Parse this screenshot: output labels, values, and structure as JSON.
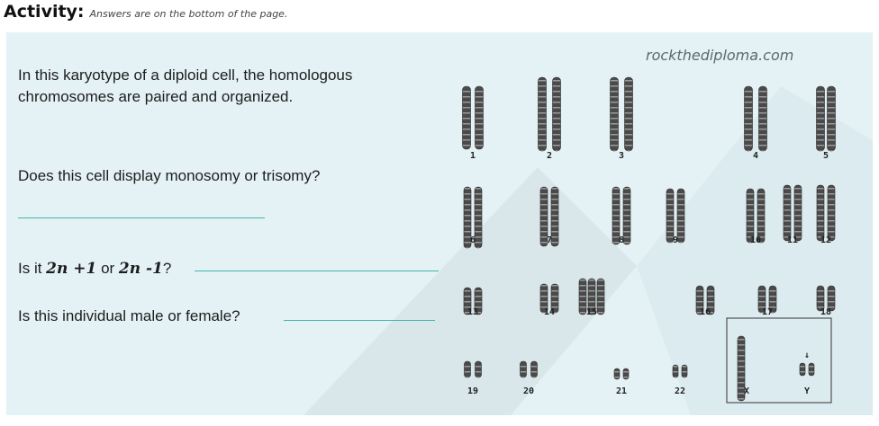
{
  "header": {
    "title": "Activity:",
    "note": "Answers are on the bottom of the page."
  },
  "content": {
    "intro_line1": "In this karyotype of a diploid cell, the homologous",
    "intro_line2": "chromosomes are paired and organized.",
    "question1": "Does this cell display monosomy or trisomy?",
    "question2_prefix": "Is it ",
    "question2_opt1": "2n +1",
    "question2_or": " or ",
    "question2_opt2": "2n -1",
    "question2_suffix": "?",
    "question3": "Is this individual male or female?"
  },
  "karyotype": {
    "site": "rockthediploma.com",
    "numbers": [
      "1",
      "2",
      "3",
      "4",
      "5",
      "6",
      "7",
      "8",
      "9",
      "10",
      "11",
      "12",
      "13",
      "14",
      "15",
      "16",
      "17",
      "18",
      "19",
      "20",
      "21",
      "22",
      "X",
      "Y"
    ],
    "arrow": "↓"
  },
  "colors": {
    "panel": "#e4f2f6",
    "answer_line": "#3fb5ad",
    "chromosome": "#3a3a3a"
  }
}
